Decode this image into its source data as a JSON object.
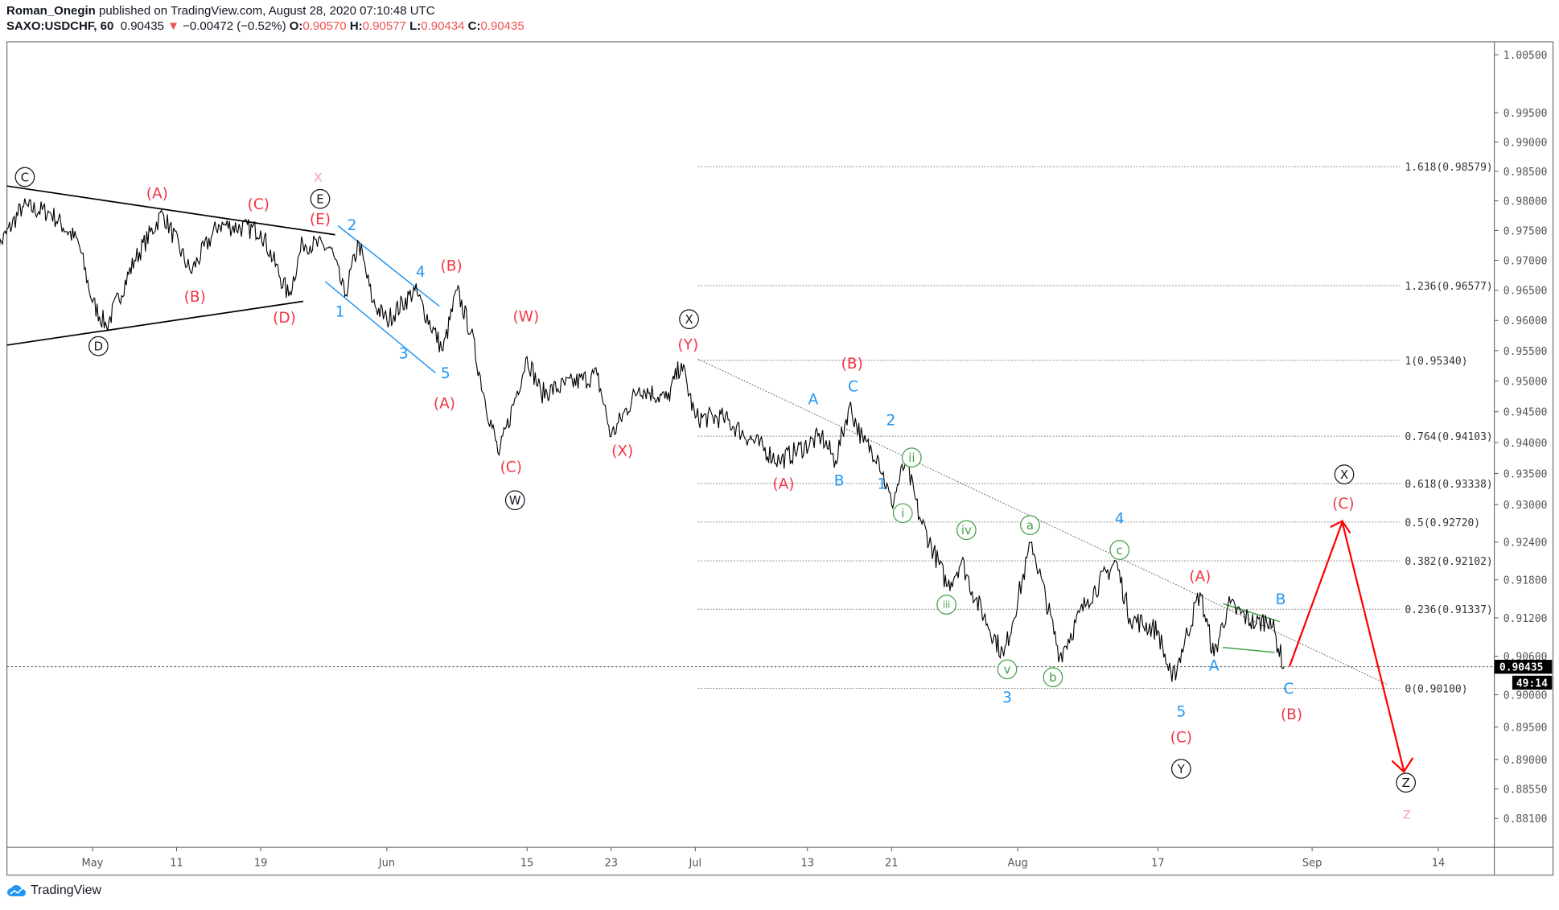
{
  "header": {
    "author": "Roman_Onegin",
    "published": "published on TradingView.com, August 28, 2020 07:10:48 UTC",
    "symbol": "SAXO:USDCHF, 60",
    "last": "0.90435",
    "change": "−0.00472 (−0.52%)",
    "o_label": "O:",
    "o": "0.90570",
    "h_label": "H:",
    "h": "0.90577",
    "l_label": "L:",
    "l": "0.90434",
    "c_label": "C:",
    "c": "0.90435",
    "direction_icon": "triangle-down-icon"
  },
  "footer": {
    "brand": "TradingView",
    "logo_icon": "tradingview-cloud-icon"
  },
  "colors": {
    "red": "#f23645",
    "blue": "#2196f3",
    "green": "#43a047",
    "pink": "#f8a5c2",
    "black": "#131722"
  },
  "chart_data": {
    "type": "line",
    "scale": "log",
    "ylim": [
      0.881,
      1.005
    ],
    "y_ticks": [
      "1.00500",
      "0.99500",
      "0.99000",
      "0.98500",
      "0.98000",
      "0.97500",
      "0.97000",
      "0.96500",
      "0.96000",
      "0.95500",
      "0.95000",
      "0.94500",
      "0.94000",
      "0.93500",
      "0.93000",
      "0.92400",
      "0.91800",
      "0.91200",
      "0.90600",
      "0.90000",
      "0.89500",
      "0.89000",
      "0.88550",
      "0.88100"
    ],
    "x_ticks": [
      "May",
      "11",
      "19",
      "Jun",
      "15",
      "23",
      "Jul",
      "13",
      "21",
      "Aug",
      "17",
      "Sep",
      "14"
    ],
    "x_tick_dates": [
      "2020-05-01",
      "2020-05-11",
      "2020-05-19",
      "2020-06-01",
      "2020-06-15",
      "2020-06-23",
      "2020-07-01",
      "2020-07-13",
      "2020-07-21",
      "2020-08-03",
      "2020-08-17",
      "2020-09-01",
      "2020-09-14"
    ],
    "current_price": "0.90435",
    "countdown": "49:14",
    "series": [
      {
        "x": [
          "2020-04-22",
          "2020-04-24",
          "2020-04-28",
          "2020-04-30",
          "2020-05-01",
          "2020-05-04",
          "2020-05-06",
          "2020-05-08",
          "2020-05-12",
          "2020-05-14",
          "2020-05-19",
          "2020-05-21",
          "2020-05-22",
          "2020-05-26",
          "2020-05-27",
          "2020-05-28",
          "2020-05-29",
          "2020-06-01",
          "2020-06-03",
          "2020-06-05",
          "2020-06-08",
          "2020-06-09",
          "2020-06-10",
          "2020-06-11",
          "2020-06-15",
          "2020-06-16",
          "2020-06-22",
          "2020-06-23",
          "2020-06-25",
          "2020-06-29",
          "2020-06-30",
          "2020-07-01",
          "2020-07-03",
          "2020-07-09",
          "2020-07-14",
          "2020-07-15",
          "2020-07-16",
          "2020-07-17",
          "2020-07-20",
          "2020-07-21",
          "2020-07-22",
          "2020-07-23",
          "2020-07-27",
          "2020-07-28",
          "2020-07-29",
          "2020-07-31",
          "2020-08-04",
          "2020-08-06",
          "2020-08-10",
          "2020-08-12",
          "2020-08-13",
          "2020-08-17",
          "2020-08-18",
          "2020-08-20",
          "2020-08-21",
          "2020-08-24",
          "2020-08-26",
          "2020-08-27",
          "2020-08-28"
        ],
        "y": [
          0.971,
          0.979,
          0.978,
          0.973,
          0.963,
          0.959,
          0.97,
          0.978,
          0.968,
          0.976,
          0.975,
          0.964,
          0.973,
          0.972,
          0.964,
          0.973,
          0.963,
          0.96,
          0.965,
          0.955,
          0.965,
          0.958,
          0.947,
          0.938,
          0.954,
          0.948,
          0.951,
          0.941,
          0.949,
          0.947,
          0.953,
          0.944,
          0.944,
          0.937,
          0.941,
          0.937,
          0.946,
          0.94,
          0.938,
          0.93,
          0.937,
          0.928,
          0.917,
          0.921,
          0.915,
          0.906,
          0.924,
          0.906,
          0.915,
          0.921,
          0.912,
          0.91,
          0.902,
          0.916,
          0.906,
          0.914,
          0.911,
          0.912,
          0.90435
        ]
      }
    ],
    "fib_levels": [
      {
        "label": "1.618(0.98579)",
        "price": 0.98579
      },
      {
        "label": "1.236(0.96577)",
        "price": 0.96577
      },
      {
        "label": "1(0.95340)",
        "price": 0.9534
      },
      {
        "label": "0.764(0.94103)",
        "price": 0.94103
      },
      {
        "label": "0.618(0.93338)",
        "price": 0.93338
      },
      {
        "label": "0.5(0.92720)",
        "price": 0.9272
      },
      {
        "label": "0.382(0.92102)",
        "price": 0.92102
      },
      {
        "label": "0.236(0.91337)",
        "price": 0.91337
      },
      {
        "label": "0(0.90100)",
        "price": 0.901
      }
    ],
    "wave_labels": [
      {
        "text": "C",
        "color": "black",
        "circled": true
      },
      {
        "text": "D",
        "color": "black",
        "circled": true
      },
      {
        "text": "E",
        "color": "black",
        "circled": true
      },
      {
        "text": "X",
        "color": "black",
        "circled": true
      },
      {
        "text": "W",
        "color": "black",
        "circled": true
      },
      {
        "text": "X",
        "color": "black",
        "circled": true
      },
      {
        "text": "Y",
        "color": "black",
        "circled": true
      },
      {
        "text": "Z",
        "color": "black",
        "circled": true
      },
      {
        "text": "x",
        "color": "pink",
        "circled": false
      },
      {
        "text": "z",
        "color": "pink",
        "circled": false
      },
      {
        "text": "(A)",
        "color": "red"
      },
      {
        "text": "(B)",
        "color": "red"
      },
      {
        "text": "(C)",
        "color": "red"
      },
      {
        "text": "(D)",
        "color": "red"
      },
      {
        "text": "(E)",
        "color": "red"
      },
      {
        "text": "(B)",
        "color": "red"
      },
      {
        "text": "(A)",
        "color": "red"
      },
      {
        "text": "(W)",
        "color": "red"
      },
      {
        "text": "(C)",
        "color": "red"
      },
      {
        "text": "(X)",
        "color": "red"
      },
      {
        "text": "(Y)",
        "color": "red"
      },
      {
        "text": "(B)",
        "color": "red"
      },
      {
        "text": "(A)",
        "color": "red"
      },
      {
        "text": "(A)",
        "color": "red"
      },
      {
        "text": "(C)",
        "color": "red"
      },
      {
        "text": "(B)",
        "color": "red"
      },
      {
        "text": "(C)",
        "color": "red"
      },
      {
        "text": "2",
        "color": "blue"
      },
      {
        "text": "4",
        "color": "blue"
      },
      {
        "text": "1",
        "color": "blue"
      },
      {
        "text": "3",
        "color": "blue"
      },
      {
        "text": "5",
        "color": "blue"
      },
      {
        "text": "A",
        "color": "blue"
      },
      {
        "text": "C",
        "color": "blue"
      },
      {
        "text": "2",
        "color": "blue"
      },
      {
        "text": "B",
        "color": "blue"
      },
      {
        "text": "1",
        "color": "blue"
      },
      {
        "text": "4",
        "color": "blue"
      },
      {
        "text": "3",
        "color": "blue"
      },
      {
        "text": "5",
        "color": "blue"
      },
      {
        "text": "A",
        "color": "blue"
      },
      {
        "text": "B",
        "color": "blue"
      },
      {
        "text": "C",
        "color": "blue"
      },
      {
        "text": "ii",
        "color": "green",
        "circled": true
      },
      {
        "text": "i",
        "color": "green",
        "circled": true
      },
      {
        "text": "iv",
        "color": "green",
        "circled": true
      },
      {
        "text": "iii",
        "color": "green",
        "circled": true
      },
      {
        "text": "a",
        "color": "green",
        "circled": true
      },
      {
        "text": "c",
        "color": "green",
        "circled": true
      },
      {
        "text": "v",
        "color": "green",
        "circled": true
      },
      {
        "text": "b",
        "color": "green",
        "circled": true
      }
    ]
  }
}
